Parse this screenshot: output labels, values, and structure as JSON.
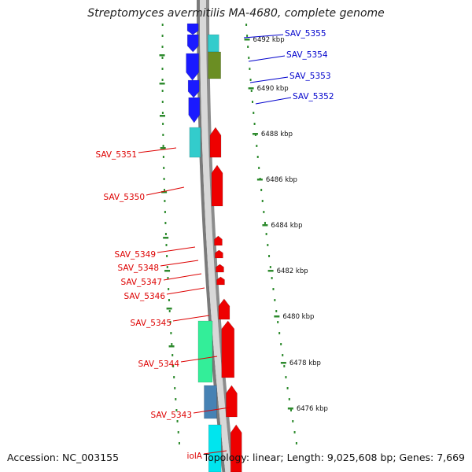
{
  "title": "Streptomyces avermitilis MA-4680, complete genome",
  "accession": "Accession: NC_003155",
  "topology": "Topology: linear; Length: 9,025,608 bp; Genes: 7,669",
  "colors": {
    "blue": "#1a1aff",
    "cyan": "#33cccc",
    "olive": "#6b8e23",
    "red": "#ee0000",
    "spring": "#33ee99",
    "steel": "#4682b4",
    "aqua": "#00e5ee",
    "track": "#9a9a9a",
    "tick": "#2e8b2e",
    "label_blue": "#0000cc",
    "label_red": "#dd0000"
  },
  "ticks": [
    {
      "label": "6492 kbp"
    },
    {
      "label": "6490 kbp"
    },
    {
      "label": "6488 kbp"
    },
    {
      "label": "6486 kbp"
    },
    {
      "label": "6484 kbp"
    },
    {
      "label": "6482 kbp"
    },
    {
      "label": "6480 kbp"
    },
    {
      "label": "6478 kbp"
    },
    {
      "label": "6476 kbp"
    }
  ],
  "genes_right": [
    {
      "name": "SAV_5355"
    },
    {
      "name": "SAV_5354"
    },
    {
      "name": "SAV_5353"
    },
    {
      "name": "SAV_5352"
    }
  ],
  "genes_left": [
    {
      "name": "SAV_5351"
    },
    {
      "name": "SAV_5350"
    },
    {
      "name": "SAV_5349"
    },
    {
      "name": "SAV_5348"
    },
    {
      "name": "SAV_5347"
    },
    {
      "name": "SAV_5346"
    },
    {
      "name": "SAV_5345"
    },
    {
      "name": "SAV_5344"
    },
    {
      "name": "SAV_5343"
    },
    {
      "name": "iolA"
    }
  ]
}
